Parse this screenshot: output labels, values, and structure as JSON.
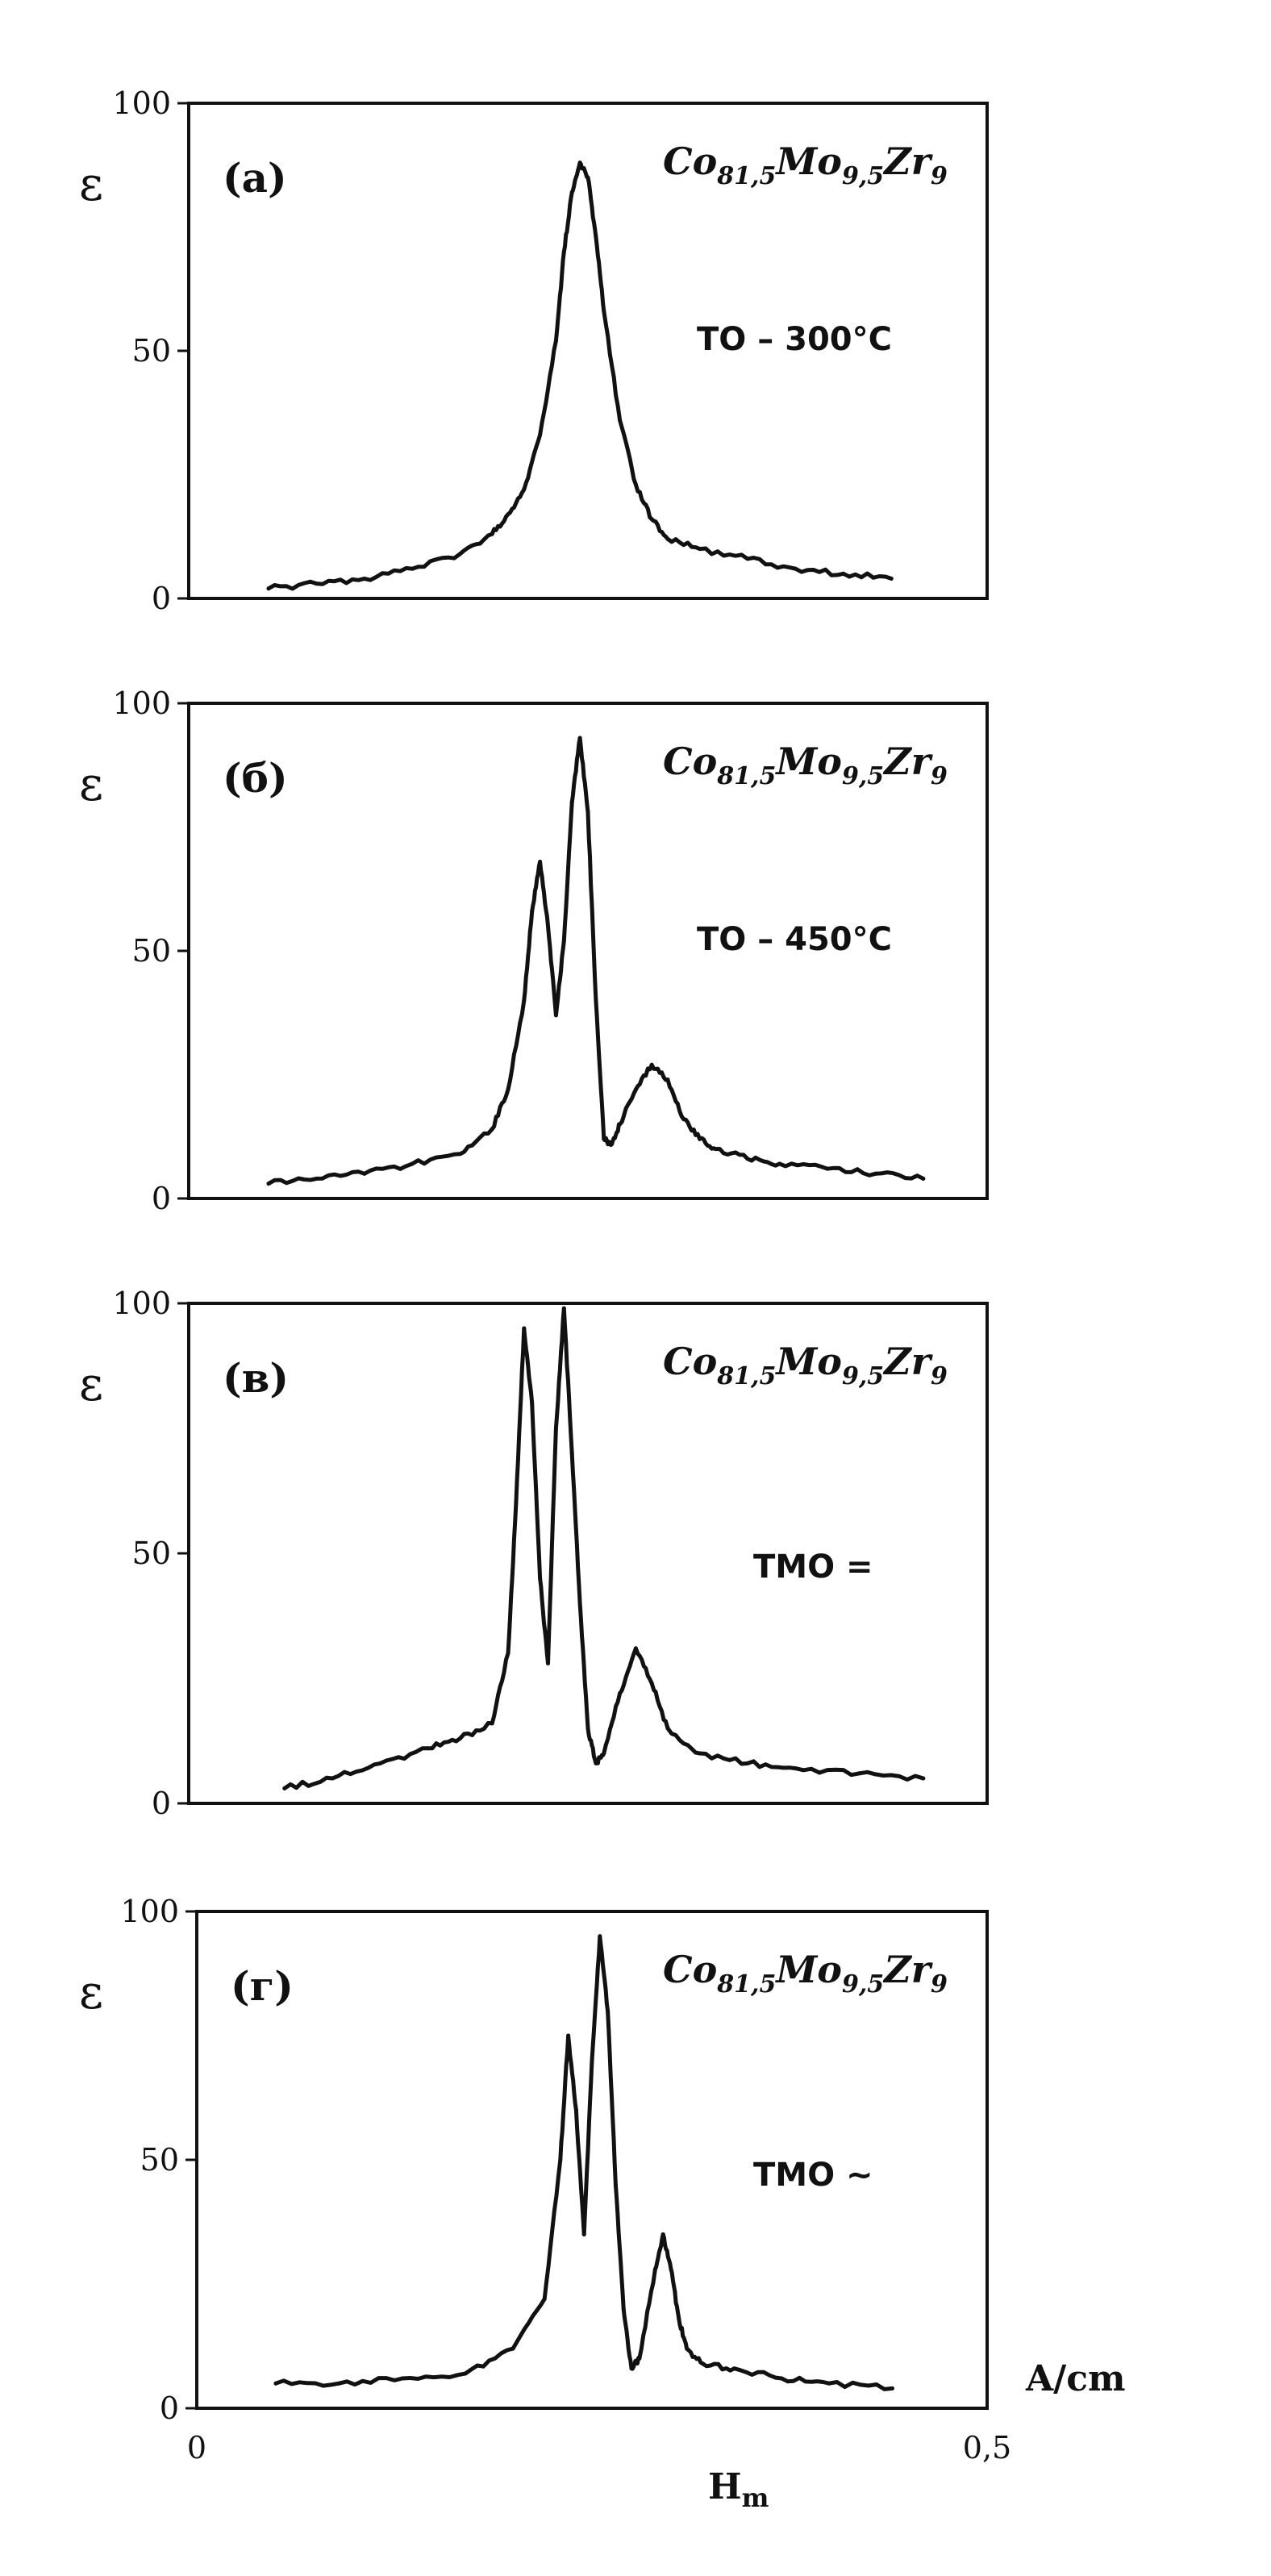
{
  "figure": {
    "x_axis": {
      "label": "H",
      "label_sub": "m",
      "unit": "A/cm",
      "tick_labels": [
        "0",
        "0,5"
      ]
    }
  },
  "chart_data": [
    {
      "type": "line",
      "panel_label": "(а)",
      "ylabel": "ε",
      "formula": {
        "parts": [
          "Co",
          "81,5",
          "Mo",
          "9,5",
          "Zr",
          "9"
        ]
      },
      "treatment": "ТО – 300°С",
      "xlim": [
        0,
        0.5
      ],
      "ylim": [
        0,
        100
      ],
      "y_ticks": [
        0,
        50,
        100
      ],
      "y_tick_labels": [
        "0",
        "50",
        "100"
      ],
      "x": [
        0.05,
        0.08,
        0.11,
        0.14,
        0.17,
        0.19,
        0.2,
        0.21,
        0.22,
        0.23,
        0.235,
        0.24,
        0.245,
        0.25,
        0.255,
        0.26,
        0.27,
        0.28,
        0.29,
        0.3,
        0.32,
        0.35,
        0.38,
        0.41,
        0.44
      ],
      "y": [
        2,
        3,
        4,
        6,
        9,
        13,
        17,
        22,
        33,
        52,
        70,
        82,
        88,
        85,
        73,
        58,
        36,
        23,
        16,
        12,
        10,
        8,
        6,
        5,
        4
      ]
    },
    {
      "type": "line",
      "panel_label": "(б)",
      "ylabel": "ε",
      "formula": {
        "parts": [
          "Co",
          "81,5",
          "Mo",
          "9,5",
          "Zr",
          "9"
        ]
      },
      "treatment": "ТО – 450°С",
      "xlim": [
        0,
        0.5
      ],
      "ylim": [
        0,
        100
      ],
      "y_ticks": [
        0,
        50,
        100
      ],
      "y_tick_labels": [
        "0",
        "50",
        "100"
      ],
      "x": [
        0.05,
        0.08,
        0.11,
        0.14,
        0.17,
        0.19,
        0.2,
        0.21,
        0.215,
        0.22,
        0.225,
        0.23,
        0.235,
        0.24,
        0.245,
        0.25,
        0.255,
        0.26,
        0.265,
        0.27,
        0.28,
        0.29,
        0.3,
        0.31,
        0.32,
        0.33,
        0.35,
        0.37,
        0.4,
        0.43,
        0.46
      ],
      "y": [
        3,
        4,
        5,
        7,
        9,
        14,
        22,
        40,
        58,
        68,
        55,
        37,
        52,
        80,
        93,
        78,
        40,
        12,
        11,
        15,
        22,
        27,
        24,
        16,
        12,
        10,
        8,
        7,
        6,
        5,
        4
      ]
    },
    {
      "type": "line",
      "panel_label": "(в)",
      "ylabel": "ε",
      "formula": {
        "parts": [
          "Co",
          "81,5",
          "Mo",
          "9,5",
          "Zr",
          "9"
        ]
      },
      "treatment": "ТМО =",
      "xlim": [
        0,
        0.5
      ],
      "ylim": [
        0,
        100
      ],
      "y_ticks": [
        0,
        50,
        100
      ],
      "y_tick_labels": [
        "0",
        "50",
        "100"
      ],
      "x": [
        0.06,
        0.09,
        0.12,
        0.15,
        0.17,
        0.19,
        0.2,
        0.205,
        0.21,
        0.215,
        0.22,
        0.225,
        0.23,
        0.235,
        0.24,
        0.245,
        0.25,
        0.255,
        0.26,
        0.27,
        0.28,
        0.29,
        0.3,
        0.32,
        0.35,
        0.38,
        0.42,
        0.46
      ],
      "y": [
        3,
        5,
        8,
        11,
        13,
        16,
        30,
        60,
        95,
        80,
        45,
        28,
        75,
        99,
        70,
        40,
        15,
        8,
        10,
        22,
        31,
        24,
        15,
        10,
        8,
        7,
        6,
        5
      ]
    },
    {
      "type": "line",
      "panel_label": "(г)",
      "ylabel": "ε",
      "formula": {
        "parts": [
          "Co",
          "81,5",
          "Mo",
          "9,5",
          "Zr",
          "9"
        ]
      },
      "treatment": "ТМО ~",
      "xlim": [
        0,
        0.5
      ],
      "ylim": [
        0,
        100
      ],
      "y_ticks": [
        0,
        50,
        100
      ],
      "y_tick_labels": [
        "0",
        "50",
        "100"
      ],
      "x": [
        0.05,
        0.09,
        0.13,
        0.17,
        0.2,
        0.22,
        0.23,
        0.235,
        0.24,
        0.245,
        0.25,
        0.255,
        0.26,
        0.265,
        0.27,
        0.275,
        0.28,
        0.29,
        0.295,
        0.3,
        0.305,
        0.31,
        0.32,
        0.34,
        0.37,
        0.4,
        0.44
      ],
      "y": [
        5,
        5,
        6,
        7,
        12,
        22,
        50,
        75,
        60,
        35,
        70,
        95,
        80,
        45,
        20,
        8,
        10,
        28,
        35,
        28,
        18,
        12,
        9,
        8,
        6,
        5,
        4
      ]
    }
  ]
}
